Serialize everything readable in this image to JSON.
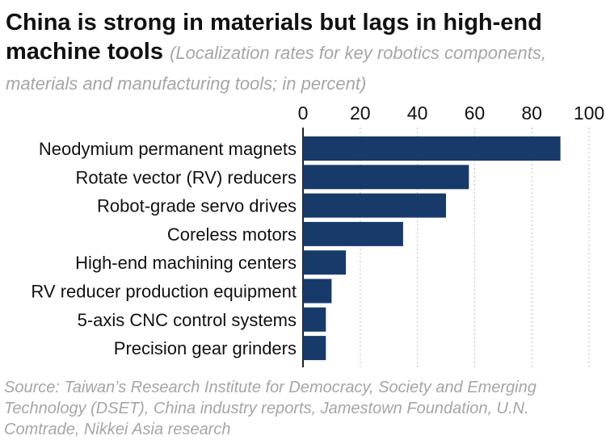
{
  "title": "China is strong in materials but lags in high-end machine tools",
  "subtitle": "(Localization rates for key robotics components, materials and manufacturing tools; in percent)",
  "source": "Source: Taiwan’s Research Institute for Democracy, Society and Emerging Technology (DSET), China industry reports, Jamestown Foundation, U.N. Comtrade, Nikkei Asia research",
  "colors": {
    "bar": "#173a6b",
    "grid": "#c8c8c8",
    "text": "#111111",
    "muted": "#a6a6a6"
  },
  "chart_data": {
    "type": "bar",
    "orientation": "horizontal",
    "categories": [
      "Neodymium permanent magnets",
      "Rotate vector (RV) reducers",
      "Robot-grade servo drives",
      "Coreless motors",
      "High-end machining centers",
      "RV reducer production equipment",
      "5-axis CNC control systems",
      "Precision gear grinders"
    ],
    "values": [
      90,
      58,
      50,
      35,
      15,
      10,
      8,
      8
    ],
    "xlim": [
      0,
      100
    ],
    "xticks": [
      0,
      20,
      40,
      60,
      80,
      100
    ],
    "axis_position": "top",
    "grid": true,
    "legend": "none"
  }
}
